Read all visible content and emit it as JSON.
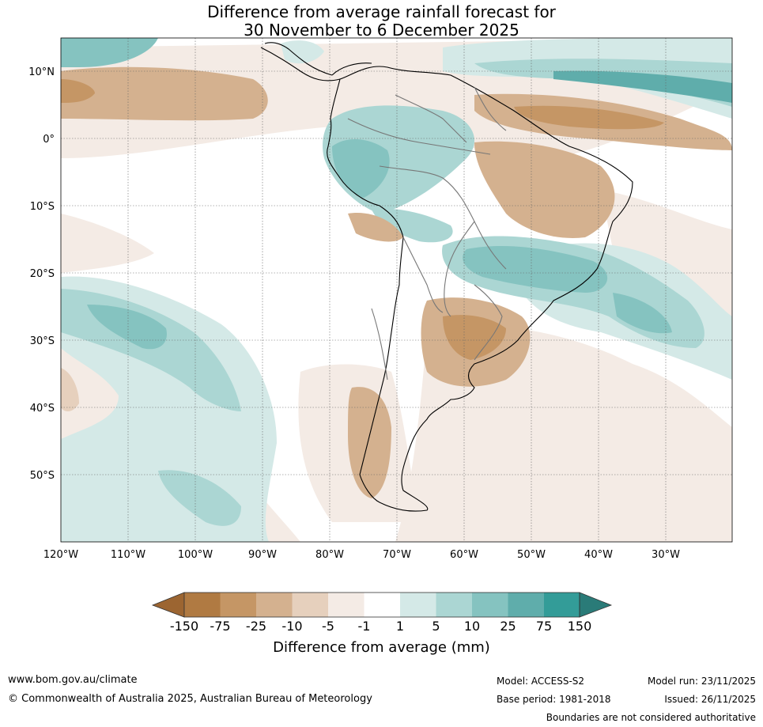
{
  "title": {
    "line1": "Difference from average rainfall forecast for",
    "line2": "30 November to 6 December 2025"
  },
  "map": {
    "lon_range": [
      -120,
      -20
    ],
    "lat_range": [
      -60,
      15
    ],
    "lat_labels": [
      "10°N",
      "0°",
      "10°S",
      "20°S",
      "30°S",
      "40°S",
      "50°S"
    ],
    "lon_labels": [
      "120°W",
      "110°W",
      "100°W",
      "90°W",
      "80°W",
      "70°W",
      "60°W",
      "50°W",
      "40°W",
      "30°W"
    ]
  },
  "colorbar": {
    "title": "Difference from average (mm)",
    "labels": [
      "-150",
      "-75",
      "-25",
      "-10",
      "-5",
      "-1",
      "1",
      "5",
      "10",
      "25",
      "75",
      "150"
    ],
    "colors": {
      "below_min": "#9c6531",
      "c_neg150_75": "#b07a42",
      "c_neg75_25": "#c59665",
      "c_neg25_10": "#d4b18f",
      "c_neg10_5": "#e6d0bd",
      "c_neg5_1": "#f4ebe5",
      "c_neg1_1": "#ffffff",
      "c_1_5": "#d4e9e7",
      "c_5_10": "#abd6d3",
      "c_10_25": "#85c3c0",
      "c_25_75": "#5fadab",
      "c_75_150": "#339c98",
      "above_max": "#2a7b78"
    }
  },
  "footer": {
    "website": "www.bom.gov.au/climate",
    "copyright": "© Commonwealth of Australia 2025, Australian Bureau of Meteorology",
    "model": "Model: ACCESS-S2",
    "base_period": "Base period: 1981-2018",
    "model_run": "Model run: 23/11/2025",
    "issued": "Issued: 26/11/2025",
    "disclaimer": "Boundaries are not considered authoritative"
  }
}
